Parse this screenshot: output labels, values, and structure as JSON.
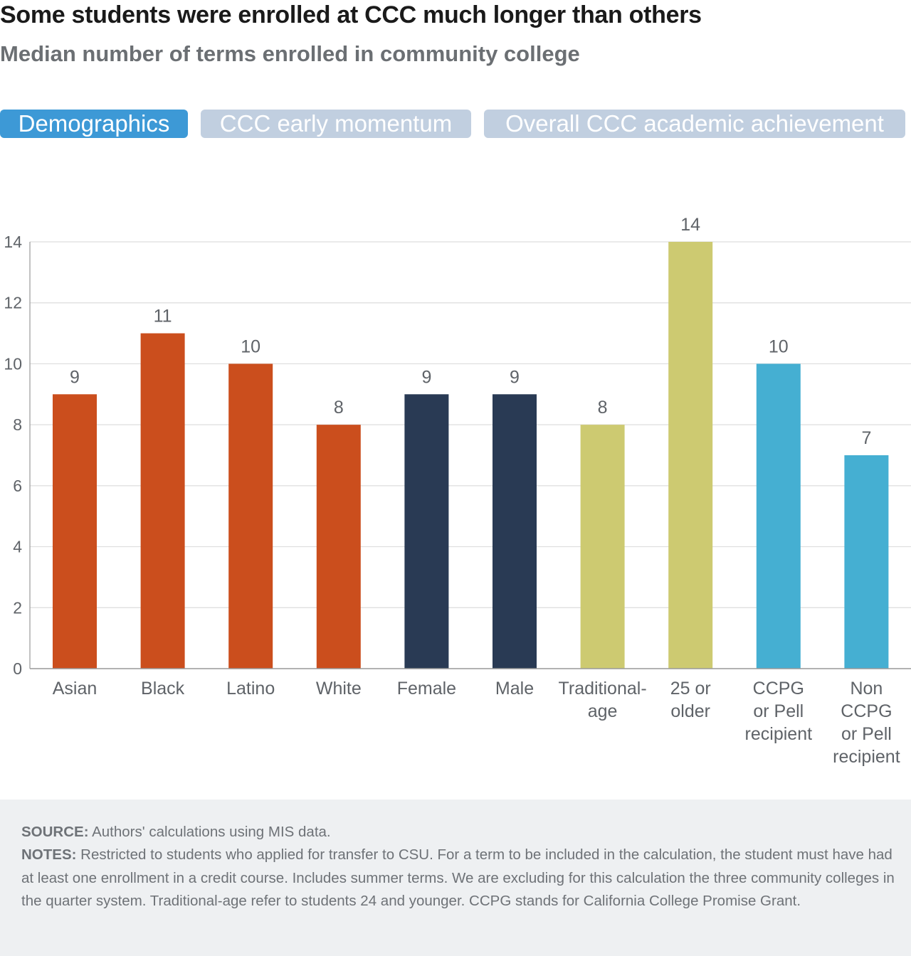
{
  "title": "Some students were enrolled at CCC much longer than others",
  "subtitle": "Median number of terms enrolled in community college",
  "tabs": [
    {
      "label": "Demographics",
      "active": true
    },
    {
      "label": "CCC early momentum",
      "active": false
    },
    {
      "label": "Overall CCC academic achievement",
      "active": false
    }
  ],
  "colors": {
    "tab_active": "#3d99d6",
    "tab_inactive": "#c1cfe0",
    "race": "#cb4e1d",
    "gender": "#293a54",
    "age": "#cdca71",
    "aid": "#45afd2"
  },
  "chart_data": {
    "type": "bar",
    "categories": [
      [
        "Asian"
      ],
      [
        "Black"
      ],
      [
        "Latino"
      ],
      [
        "White"
      ],
      [
        "Female"
      ],
      [
        "Male"
      ],
      [
        "Traditional-",
        "age"
      ],
      [
        "25 or",
        "older"
      ],
      [
        "CCPG",
        "or Pell",
        "recipient"
      ],
      [
        "Non",
        "CCPG",
        "or Pell",
        "recipient"
      ]
    ],
    "values": [
      9,
      11,
      10,
      8,
      9,
      9,
      8,
      14,
      10,
      7
    ],
    "bar_colors": [
      "#cb4e1d",
      "#cb4e1d",
      "#cb4e1d",
      "#cb4e1d",
      "#293a54",
      "#293a54",
      "#cdca71",
      "#cdca71",
      "#45afd2",
      "#45afd2"
    ],
    "ylim": [
      0,
      14
    ],
    "yticks": [
      0,
      2,
      4,
      6,
      8,
      10,
      12,
      14
    ],
    "grid": true,
    "data_labels": true,
    "legend": "none"
  },
  "notes": {
    "source_label": "SOURCE:",
    "source_text": " Authors' calculations using MIS data.",
    "notes_label": "NOTES:",
    "notes_text": " Restricted to students who applied for transfer to CSU. For a term to be included in the calculation, the student must have had at least one enrollment in a credit course. Includes summer terms. We are excluding for this calculation the three community colleges in the quarter system. Traditional-age refer to students 24 and younger. CCPG stands for California College Promise Grant."
  }
}
